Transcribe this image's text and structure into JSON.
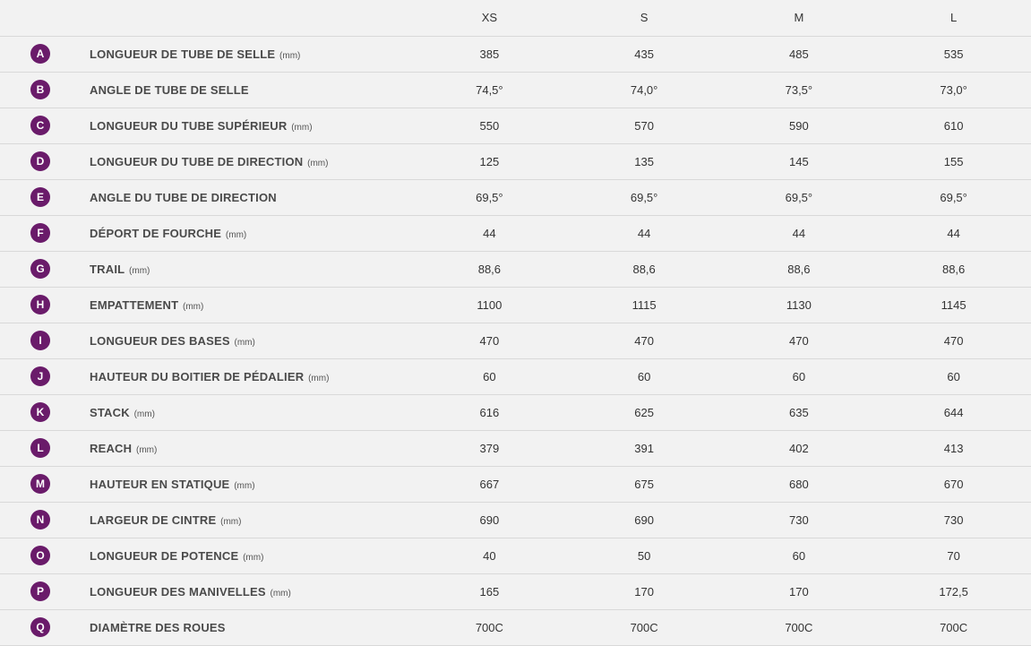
{
  "badge_bg": "#6a1b6a",
  "background": "#f2f2f2",
  "border_color": "#d9d9d9",
  "columns": [
    "XS",
    "S",
    "M",
    "L"
  ],
  "rows": [
    {
      "badge": "A",
      "label": "LONGUEUR DE TUBE DE SELLE",
      "unit": "(mm)",
      "values": [
        "385",
        "435",
        "485",
        "535"
      ]
    },
    {
      "badge": "B",
      "label": "ANGLE DE TUBE DE SELLE",
      "unit": "",
      "values": [
        "74,5°",
        "74,0°",
        "73,5°",
        "73,0°"
      ]
    },
    {
      "badge": "C",
      "label": "LONGUEUR DU TUBE SUPÉRIEUR",
      "unit": "(mm)",
      "values": [
        "550",
        "570",
        "590",
        "610"
      ]
    },
    {
      "badge": "D",
      "label": "LONGUEUR DU TUBE DE DIRECTION",
      "unit": "(mm)",
      "values": [
        "125",
        "135",
        "145",
        "155"
      ]
    },
    {
      "badge": "E",
      "label": "ANGLE DU TUBE DE DIRECTION",
      "unit": "",
      "values": [
        "69,5°",
        "69,5°",
        "69,5°",
        "69,5°"
      ]
    },
    {
      "badge": "F",
      "label": "DÉPORT DE FOURCHE",
      "unit": "(mm)",
      "values": [
        "44",
        "44",
        "44",
        "44"
      ]
    },
    {
      "badge": "G",
      "label": "TRAIL",
      "unit": "(mm)",
      "values": [
        "88,6",
        "88,6",
        "88,6",
        "88,6"
      ]
    },
    {
      "badge": "H",
      "label": "EMPATTEMENT",
      "unit": "(mm)",
      "values": [
        "1100",
        "1115",
        "1130",
        "1145"
      ]
    },
    {
      "badge": "I",
      "label": "LONGUEUR DES BASES",
      "unit": "(mm)",
      "values": [
        "470",
        "470",
        "470",
        "470"
      ]
    },
    {
      "badge": "J",
      "label": "HAUTEUR DU BOITIER DE PÉDALIER",
      "unit": "(mm)",
      "values": [
        "60",
        "60",
        "60",
        "60"
      ]
    },
    {
      "badge": "K",
      "label": "STACK",
      "unit": "(mm)",
      "values": [
        "616",
        "625",
        "635",
        "644"
      ]
    },
    {
      "badge": "L",
      "label": "REACH",
      "unit": "(mm)",
      "values": [
        "379",
        "391",
        "402",
        "413"
      ]
    },
    {
      "badge": "M",
      "label": "HAUTEUR EN STATIQUE",
      "unit": "(mm)",
      "values": [
        "667",
        "675",
        "680",
        "670"
      ]
    },
    {
      "badge": "N",
      "label": "LARGEUR DE CINTRE",
      "unit": "(mm)",
      "values": [
        "690",
        "690",
        "730",
        "730"
      ]
    },
    {
      "badge": "O",
      "label": "LONGUEUR DE POTENCE",
      "unit": "(mm)",
      "values": [
        "40",
        "50",
        "60",
        "70"
      ]
    },
    {
      "badge": "P",
      "label": "LONGUEUR DES MANIVELLES",
      "unit": "(mm)",
      "values": [
        "165",
        "170",
        "170",
        "172,5"
      ]
    },
    {
      "badge": "Q",
      "label": "DIAMÈTRE DES ROUES",
      "unit": "",
      "values": [
        "700C",
        "700C",
        "700C",
        "700C"
      ]
    }
  ]
}
